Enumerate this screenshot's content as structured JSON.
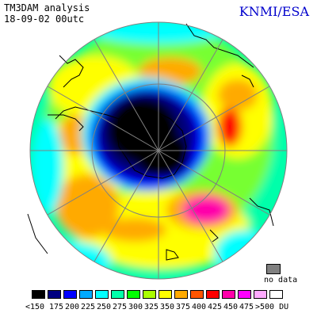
{
  "header": {
    "line1": "TM3DAM analysis",
    "line2": "18-09-02 00utc",
    "brand": "KNMI/ESA",
    "brand_color": "#0000cc"
  },
  "nodata": {
    "label": "no data",
    "color": "#808080"
  },
  "legend": {
    "unit": "DU",
    "colors": [
      "#000000",
      "#000080",
      "#0000ff",
      "#00aaff",
      "#00ffff",
      "#00ffaa",
      "#00ff00",
      "#aaff00",
      "#ffff00",
      "#ffaa00",
      "#ff5500",
      "#ff0000",
      "#ff00aa",
      "#ff00ff",
      "#ffaaff",
      "#ffffff"
    ],
    "ticks": [
      "<150",
      "175",
      "200",
      "225",
      "250",
      "275",
      "300",
      "325",
      "350",
      "375",
      "400",
      "425",
      "450",
      "475",
      ">500 DU"
    ]
  },
  "map": {
    "projection": "south-polar-stereographic",
    "graticule": "on",
    "region": "Antarctica",
    "feature": "ozone hole"
  }
}
